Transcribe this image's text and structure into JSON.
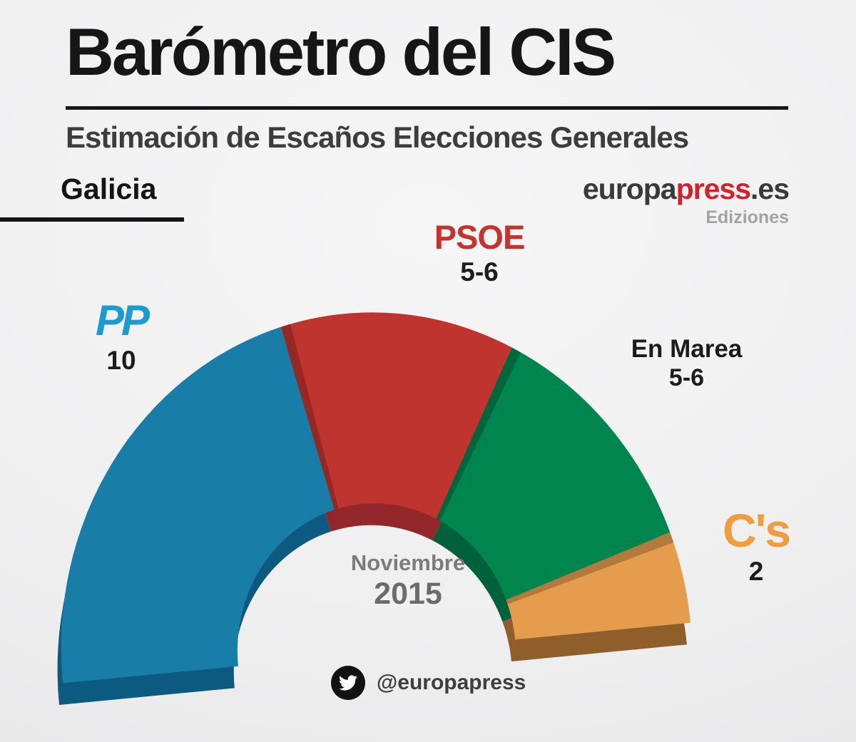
{
  "header": {
    "title": "Barómetro del CIS",
    "subtitle": "Estimación de Escaños Elecciones Generales",
    "region": "Galicia",
    "brand": {
      "europa": "europa",
      "press": "press",
      "es": ".es",
      "ediziones": "Ediziones",
      "red": "#d2232a",
      "dark": "#3a3a3a",
      "gray": "#a3a3a3"
    }
  },
  "chart_data": {
    "type": "pie",
    "variant": "semicircle-donut-3d",
    "title": "Barómetro del CIS",
    "subtitle": "Estimación de Escaños Elecciones Generales",
    "region": "Galicia",
    "period": {
      "month": "Noviembre",
      "year": "2015"
    },
    "legend_position": "around-arc",
    "series": [
      {
        "name": "PP",
        "seats_label": "10",
        "value": 10,
        "color": "#187ea8",
        "shadow_color": "#0c5a80",
        "label_color": "#1b9bd3"
      },
      {
        "name": "PSOE",
        "seats_label": "5-6",
        "value": 5.5,
        "color": "#c0342f",
        "shadow_color": "#93262b",
        "label_color": "#c5332f"
      },
      {
        "name": "En Marea",
        "seats_label": "5-6",
        "value": 5.5,
        "color": "#00854f",
        "shadow_color": "#00613c",
        "label_color": "#1b1b1b"
      },
      {
        "name": "C's",
        "seats_label": "2",
        "value": 2,
        "color": "#e59d4d",
        "shadow_color": "#8f5e2b",
        "label_color": "#f09d3e"
      }
    ]
  },
  "footer": {
    "twitter_handle": "@europapress"
  }
}
